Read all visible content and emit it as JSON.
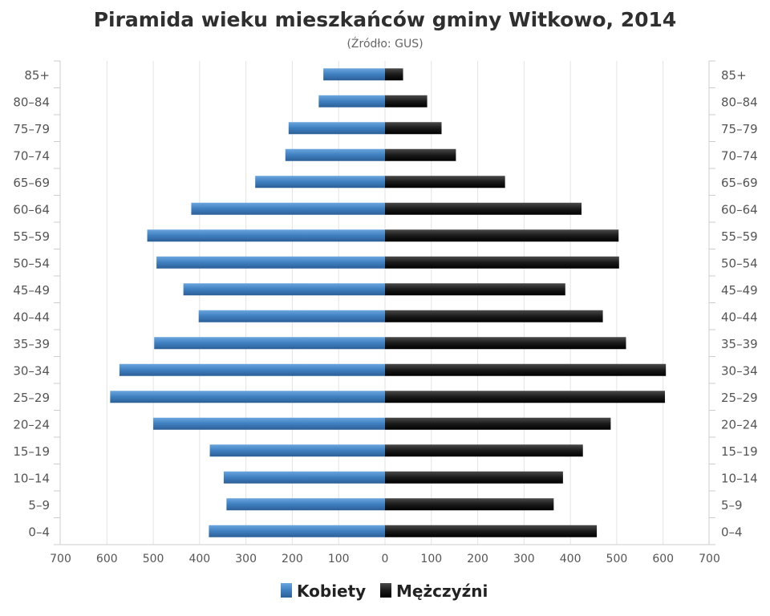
{
  "chart_data": {
    "type": "bar",
    "orientation": "horizontal",
    "title": "Piramida wieku mieszkańców gminy Witkowo, 2014",
    "subtitle": "(Źródło: GUS)",
    "categories": [
      "0–4",
      "5–9",
      "10–14",
      "15–19",
      "20–24",
      "25–29",
      "30–34",
      "35–39",
      "40–44",
      "45–49",
      "50–54",
      "55–59",
      "60–64",
      "65–69",
      "70–74",
      "75–79",
      "80–84",
      "85+"
    ],
    "series": [
      {
        "name": "Kobiety",
        "color": "#3f7fc0",
        "direction": "left",
        "values": [
          380,
          342,
          348,
          378,
          500,
          593,
          573,
          498,
          402,
          435,
          493,
          513,
          418,
          280,
          215,
          208,
          143,
          133
        ]
      },
      {
        "name": "Mężczyźni",
        "color": "#1a1a1a",
        "direction": "right",
        "values": [
          457,
          364,
          384,
          427,
          487,
          604,
          606,
          520,
          470,
          389,
          505,
          504,
          424,
          259,
          153,
          122,
          91,
          39
        ]
      }
    ],
    "xticks": [
      "700",
      "600",
      "500",
      "400",
      "300",
      "200",
      "100",
      "0",
      "100",
      "200",
      "300",
      "400",
      "500",
      "600",
      "700"
    ],
    "xlim": [
      -700,
      700
    ],
    "grid": true,
    "legend": "bottom"
  }
}
